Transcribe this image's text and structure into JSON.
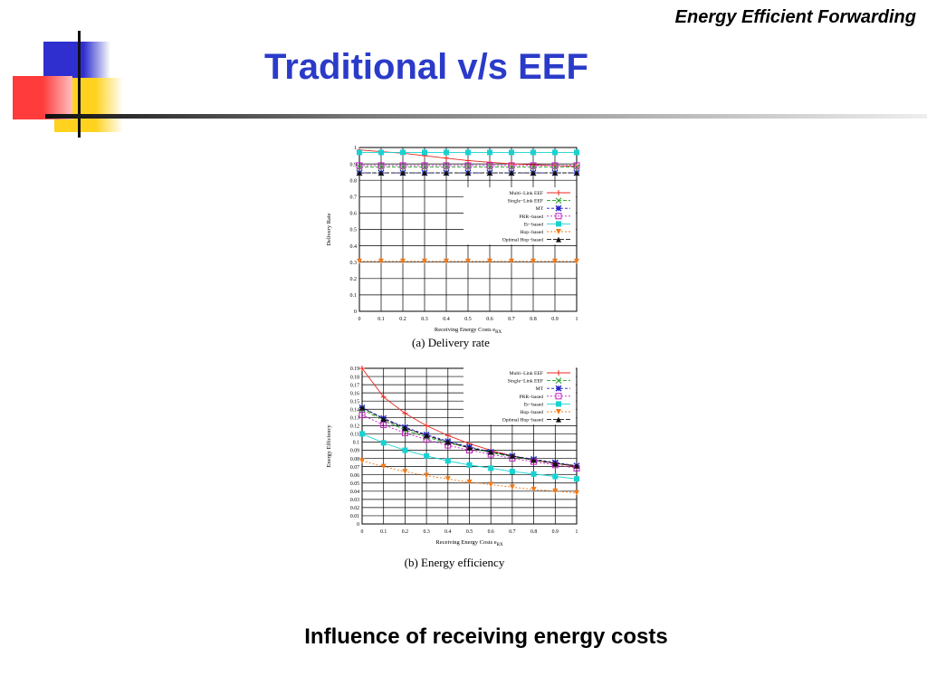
{
  "header": {
    "label": "Energy Efficient Forwarding"
  },
  "title": "Traditional v/s EEF",
  "caption": "Influence of receiving energy costs",
  "colors": {
    "title": "#2B3BC9",
    "deco_blue": "#2F2FCF",
    "deco_red": "#FF3B3B",
    "deco_yellow": "#FFD21F"
  },
  "chart_data": [
    {
      "type": "line",
      "subcaption": "(a)  Delivery rate",
      "ylabel": "Delivery Rate",
      "xlabel": "Receiving Energy Costs e",
      "xlabel_sub": "RX",
      "xlim": [
        0,
        1
      ],
      "ylim": [
        0,
        1
      ],
      "x": [
        0,
        0.1,
        0.2,
        0.3,
        0.4,
        0.5,
        0.6,
        0.7,
        0.8,
        0.9,
        1
      ],
      "x_ticks": [
        "0",
        "0.1",
        "0.2",
        "0.3",
        "0.4",
        "0.5",
        "0.6",
        "0.7",
        "0.8",
        "0.9",
        "1"
      ],
      "y_ticks": [
        "0",
        "0.1",
        "0.2",
        "0.3",
        "0.4",
        "0.5",
        "0.6",
        "0.7",
        "0.8",
        "0.9",
        "1"
      ],
      "grid": true,
      "legend_position": "right",
      "series": [
        {
          "name": "Multi−Link EEF",
          "color": "#E8271E",
          "values": [
            0.985,
            0.975,
            0.965,
            0.95,
            0.935,
            0.92,
            0.91,
            0.9,
            0.895,
            0.89,
            0.885
          ]
        },
        {
          "name": "Single−Link EEF",
          "color": "#1FA01F",
          "values": [
            0.88,
            0.88,
            0.88,
            0.88,
            0.88,
            0.88,
            0.88,
            0.88,
            0.88,
            0.88,
            0.88
          ]
        },
        {
          "name": "MT",
          "color": "#1F1FC8",
          "values": [
            0.845,
            0.845,
            0.845,
            0.845,
            0.845,
            0.845,
            0.845,
            0.845,
            0.845,
            0.845,
            0.845
          ]
        },
        {
          "name": "PRR−based",
          "color": "#C21FC2",
          "values": [
            0.89,
            0.89,
            0.89,
            0.89,
            0.89,
            0.89,
            0.89,
            0.89,
            0.89,
            0.89,
            0.89
          ]
        },
        {
          "name": "Er−based",
          "color": "#18D2D2",
          "values": [
            0.97,
            0.97,
            0.97,
            0.97,
            0.97,
            0.97,
            0.97,
            0.97,
            0.97,
            0.97,
            0.97
          ]
        },
        {
          "name": "Hop−based",
          "color": "#F07A1A",
          "values": [
            0.305,
            0.305,
            0.305,
            0.305,
            0.305,
            0.305,
            0.305,
            0.305,
            0.305,
            0.305,
            0.305
          ]
        },
        {
          "name": "Optimal Hop−based",
          "color": "#111111",
          "values": [
            0.845,
            0.845,
            0.845,
            0.845,
            0.845,
            0.845,
            0.845,
            0.845,
            0.845,
            0.845,
            0.845
          ]
        }
      ]
    },
    {
      "type": "line",
      "subcaption": "(b)  Energy efficiency",
      "ylabel": "Energy Efficiency",
      "xlabel": "Receiving Energy Costs e",
      "xlabel_sub": "RX",
      "xlim": [
        0,
        1
      ],
      "ylim": [
        0,
        0.19
      ],
      "x": [
        0,
        0.1,
        0.2,
        0.3,
        0.4,
        0.5,
        0.6,
        0.7,
        0.8,
        0.9,
        1
      ],
      "x_ticks": [
        "0",
        "0.1",
        "0.2",
        "0.3",
        "0.4",
        "0.5",
        "0.6",
        "0.7",
        "0.8",
        "0.9",
        "1"
      ],
      "y_ticks": [
        "0",
        "0.01",
        "0.02",
        "0.03",
        "0.04",
        "0.05",
        "0.06",
        "0.07",
        "0.08",
        "0.09",
        "0.1",
        "0.11",
        "0.12",
        "0.13",
        "0.14",
        "0.15",
        "0.16",
        "0.17",
        "0.18",
        "0.19"
      ],
      "grid": true,
      "legend_position": "top-right",
      "series": [
        {
          "name": "Multi−Link EEF",
          "color": "#E8271E",
          "values": [
            0.19,
            0.155,
            0.135,
            0.12,
            0.108,
            0.098,
            0.09,
            0.083,
            0.078,
            0.074,
            0.07
          ]
        },
        {
          "name": "Single−Link EEF",
          "color": "#1FA01F",
          "values": [
            0.14,
            0.126,
            0.115,
            0.106,
            0.099,
            0.093,
            0.087,
            0.082,
            0.078,
            0.074,
            0.071
          ]
        },
        {
          "name": "MT",
          "color": "#1F1FC8",
          "values": [
            0.142,
            0.129,
            0.118,
            0.109,
            0.101,
            0.094,
            0.088,
            0.083,
            0.079,
            0.075,
            0.071
          ]
        },
        {
          "name": "PRR−based",
          "color": "#C21FC2",
          "values": [
            0.133,
            0.121,
            0.111,
            0.103,
            0.096,
            0.09,
            0.085,
            0.08,
            0.076,
            0.072,
            0.068
          ]
        },
        {
          "name": "Er−based",
          "color": "#18D2D2",
          "values": [
            0.11,
            0.099,
            0.09,
            0.083,
            0.077,
            0.072,
            0.068,
            0.064,
            0.061,
            0.058,
            0.055
          ]
        },
        {
          "name": "Hop−based",
          "color": "#F07A1A",
          "values": [
            0.077,
            0.07,
            0.064,
            0.059,
            0.055,
            0.051,
            0.048,
            0.045,
            0.042,
            0.04,
            0.038
          ]
        },
        {
          "name": "Optimal Hop−based",
          "color": "#111111",
          "values": [
            0.142,
            0.128,
            0.117,
            0.108,
            0.1,
            0.093,
            0.088,
            0.083,
            0.078,
            0.074,
            0.071
          ]
        }
      ]
    }
  ]
}
